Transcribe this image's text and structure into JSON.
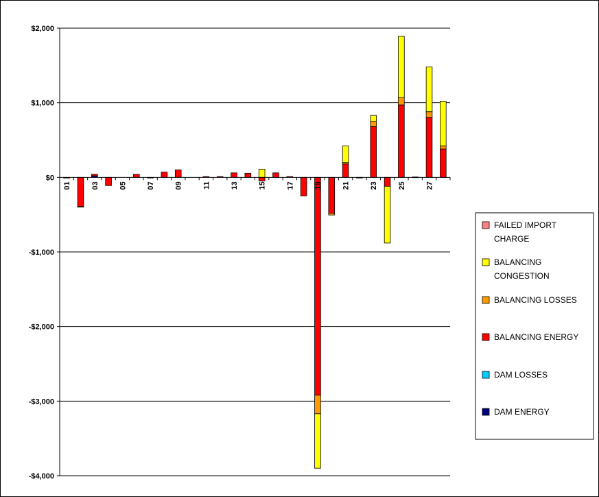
{
  "chart_data": {
    "type": "bar",
    "stacked": true,
    "categories": [
      "01",
      "02",
      "03",
      "04",
      "05",
      "06",
      "07",
      "08",
      "09",
      "10",
      "11",
      "12",
      "13",
      "14",
      "15",
      "16",
      "17",
      "18",
      "19",
      "20",
      "21",
      "22",
      "23",
      "24",
      "25",
      "26",
      "27",
      "28"
    ],
    "tick_labels": [
      "01",
      "03",
      "05",
      "07",
      "09",
      "11",
      "13",
      "15",
      "17",
      "19",
      "21",
      "23",
      "25",
      "27"
    ],
    "ylim": [
      -4000,
      2000
    ],
    "yticks": [
      2000,
      1000,
      0,
      -1000,
      -2000,
      -3000,
      -4000
    ],
    "ytick_labels": [
      "$2,000",
      "$1,000",
      "$0",
      "-$1,000",
      "-$2,000",
      "-$3,000",
      "-$4,000"
    ],
    "grid": true,
    "legend_position": "right",
    "series": [
      {
        "name": "DAM ENERGY",
        "color": "#000080",
        "values": [
          0,
          0,
          20,
          0,
          0,
          0,
          0,
          0,
          0,
          0,
          0,
          0,
          0,
          0,
          0,
          0,
          0,
          0,
          0,
          0,
          0,
          0,
          0,
          0,
          0,
          0,
          0,
          0
        ]
      },
      {
        "name": "DAM LOSSES",
        "color": "#00ccff",
        "values": [
          0,
          0,
          0,
          0,
          0,
          0,
          0,
          0,
          0,
          0,
          0,
          0,
          0,
          0,
          0,
          0,
          0,
          0,
          0,
          0,
          0,
          0,
          0,
          0,
          0,
          0,
          0,
          0
        ]
      },
      {
        "name": "BALANCING ENERGY",
        "color": "#ff0000",
        "values": [
          -10,
          -390,
          20,
          -110,
          0,
          40,
          -5,
          70,
          100,
          0,
          10,
          10,
          60,
          55,
          -50,
          60,
          10,
          -250,
          -2920,
          -480,
          180,
          -5,
          680,
          -120,
          970,
          5,
          800,
          380
        ]
      },
      {
        "name": "BALANCING LOSSES",
        "color": "#ff9900",
        "values": [
          0,
          -10,
          0,
          0,
          0,
          0,
          0,
          0,
          0,
          0,
          0,
          0,
          0,
          0,
          0,
          0,
          0,
          0,
          -250,
          -25,
          20,
          0,
          70,
          0,
          100,
          0,
          80,
          40
        ]
      },
      {
        "name": "BALANCING CONGESTION",
        "color": "#ffff00",
        "values": [
          0,
          0,
          0,
          0,
          0,
          0,
          0,
          0,
          0,
          0,
          0,
          0,
          0,
          0,
          110,
          0,
          0,
          0,
          -730,
          0,
          220,
          0,
          80,
          -760,
          820,
          0,
          600,
          600
        ]
      },
      {
        "name": "FAILED IMPORT CHARGE",
        "color": "#ff8080",
        "values": [
          0,
          0,
          0,
          0,
          0,
          0,
          0,
          0,
          0,
          0,
          0,
          0,
          0,
          0,
          0,
          0,
          0,
          0,
          0,
          0,
          0,
          0,
          0,
          0,
          0,
          0,
          0,
          0
        ]
      }
    ],
    "legend_order": [
      "FAILED IMPORT CHARGE",
      "BALANCING CONGESTION",
      "BALANCING LOSSES",
      "BALANCING ENERGY",
      "DAM LOSSES",
      "DAM ENERGY"
    ]
  }
}
